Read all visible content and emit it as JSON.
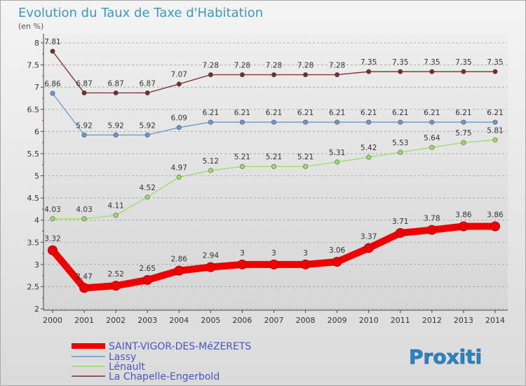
{
  "chart_data": {
    "type": "line",
    "title": "Evolution du Taux de Taxe d'Habitation",
    "subtitle": "(en %)",
    "x": [
      "2000",
      "2001",
      "2002",
      "2003",
      "2004",
      "2005",
      "2006",
      "2007",
      "2008",
      "2009",
      "2010",
      "2011",
      "2012",
      "2013",
      "2014"
    ],
    "ylim": [
      2,
      8
    ],
    "yticks": [
      "2",
      "2.5",
      "3",
      "3.5",
      "4",
      "4.5",
      "5",
      "5.5",
      "6",
      "6.5",
      "7",
      "7.5",
      "8"
    ],
    "grid": "horizontal dashed",
    "legend_position": "bottom-left",
    "series": [
      {
        "name": "SAINT-VIGOR-DES-MéZERETS",
        "color": "#ee0000",
        "highlight": true,
        "values": [
          3.32,
          2.47,
          2.52,
          2.65,
          2.86,
          2.94,
          3,
          3,
          3,
          3.06,
          3.37,
          3.71,
          3.78,
          3.86,
          3.86
        ],
        "labels": [
          "3.32",
          "2.47",
          "2.52",
          "2.65",
          "2.86",
          "2.94",
          "3",
          "3",
          "3",
          "3.06",
          "3.37",
          "3.71",
          "3.78",
          "3.86",
          "3.86"
        ]
      },
      {
        "name": "Lassy",
        "color": "#6699cc",
        "highlight": false,
        "values": [
          6.86,
          5.92,
          5.92,
          5.92,
          6.09,
          6.21,
          6.21,
          6.21,
          6.21,
          6.21,
          6.21,
          6.21,
          6.21,
          6.21,
          6.21
        ],
        "labels": [
          "6.86",
          "5.92",
          "5.92",
          "5.92",
          "6.09",
          "6.21",
          "6.21",
          "6.21",
          "6.21",
          "6.21",
          "6.21",
          "6.21",
          "6.21",
          "6.21",
          "6.21"
        ]
      },
      {
        "name": "Lénault",
        "color": "#99dd66",
        "highlight": false,
        "values": [
          4.03,
          4.03,
          4.11,
          4.52,
          4.97,
          5.12,
          5.21,
          5.21,
          5.21,
          5.31,
          5.42,
          5.53,
          5.64,
          5.75,
          5.81
        ],
        "labels": [
          "4.03",
          "4.03",
          "4.11",
          "4.52",
          "4.97",
          "5.12",
          "5.21",
          "5.21",
          "5.21",
          "5.31",
          "5.42",
          "5.53",
          "5.64",
          "5.75",
          "5.81"
        ]
      },
      {
        "name": "La Chapelle-Engerbold",
        "color": "#7a2a2a",
        "highlight": false,
        "values": [
          7.81,
          6.87,
          6.87,
          6.87,
          7.07,
          7.28,
          7.28,
          7.28,
          7.28,
          7.28,
          7.35,
          7.35,
          7.35,
          7.35,
          7.35
        ],
        "labels": [
          "7.81",
          "6.87",
          "6.87",
          "6.87",
          "7.07",
          "7.28",
          "7.28",
          "7.28",
          "7.28",
          "7.28",
          "7.35",
          "7.35",
          "7.35",
          "7.35",
          "7.35"
        ]
      }
    ]
  },
  "branding": {
    "logo_text": "Proxiti"
  }
}
